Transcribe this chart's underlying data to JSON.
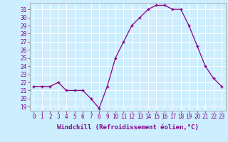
{
  "x": [
    0,
    1,
    2,
    3,
    4,
    5,
    6,
    7,
    8,
    9,
    10,
    11,
    12,
    13,
    14,
    15,
    16,
    17,
    18,
    19,
    20,
    21,
    22,
    23
  ],
  "y": [
    21.5,
    21.5,
    21.5,
    22.0,
    21.0,
    21.0,
    21.0,
    20.0,
    18.8,
    21.5,
    25.0,
    27.0,
    29.0,
    30.0,
    31.0,
    31.5,
    31.5,
    31.0,
    31.0,
    29.0,
    26.5,
    24.0,
    22.5,
    21.5
  ],
  "line_color": "#880088",
  "marker": "+",
  "bg_color": "#cceeff",
  "grid_color": "#ffffff",
  "xlabel": "Windchill (Refroidissement éolien,°C)",
  "xlim": [
    -0.5,
    23.5
  ],
  "ylim": [
    18.5,
    31.8
  ],
  "yticks": [
    19,
    20,
    21,
    22,
    23,
    24,
    25,
    26,
    27,
    28,
    29,
    30,
    31
  ],
  "xticks": [
    0,
    1,
    2,
    3,
    4,
    5,
    6,
    7,
    8,
    9,
    10,
    11,
    12,
    13,
    14,
    15,
    16,
    17,
    18,
    19,
    20,
    21,
    22,
    23
  ],
  "tick_fontsize": 5.5,
  "xlabel_fontsize": 6.5
}
